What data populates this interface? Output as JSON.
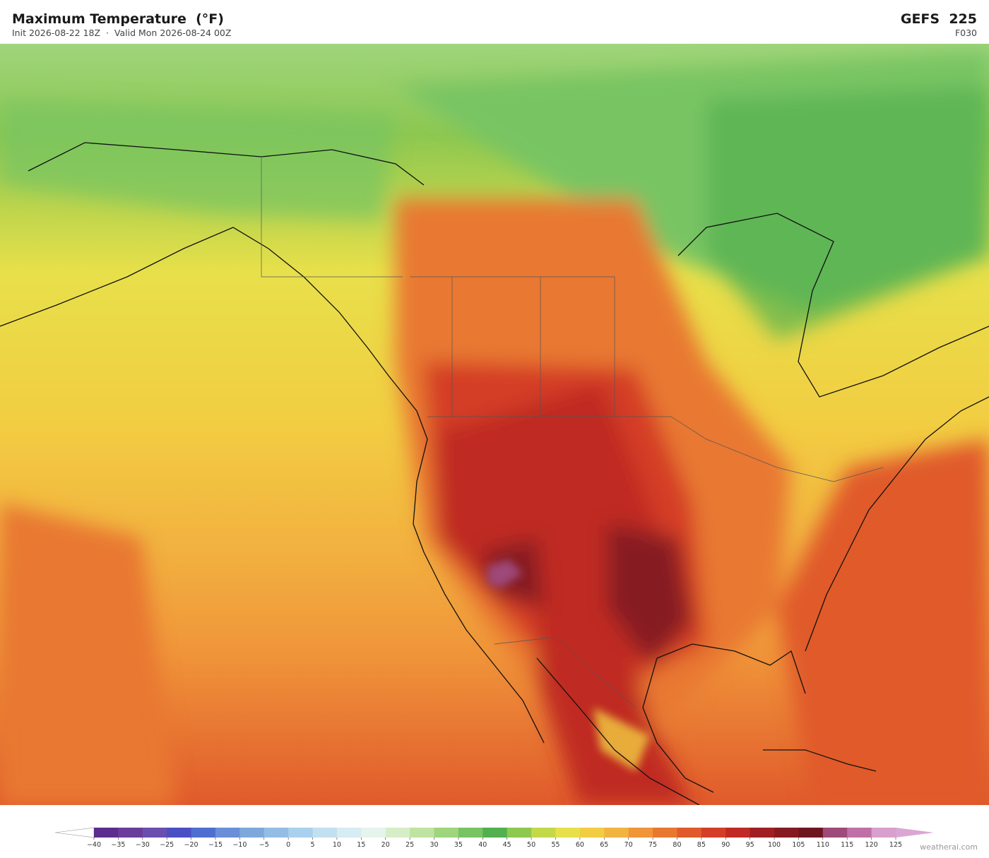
{
  "header": {
    "title": "Maximum Temperature  (°F)",
    "subtitle": "Init 2026-08-22 18Z  ·  Valid Mon 2026-08-24 00Z",
    "model": "GEFS  225",
    "forecast_hour": "F030"
  },
  "colorbar": {
    "labels": [
      "−40",
      "−35",
      "−30",
      "−25",
      "−20",
      "−15",
      "−10",
      "−5",
      "0",
      "5",
      "10",
      "15",
      "20",
      "25",
      "30",
      "35",
      "40",
      "45",
      "50",
      "55",
      "60",
      "65",
      "70",
      "75",
      "80",
      "85",
      "90",
      "95",
      "100",
      "105",
      "110",
      "115",
      "120",
      "125"
    ],
    "colors": [
      "#5b2d8e",
      "#6a3d9a",
      "#6a4fb0",
      "#4b4fc4",
      "#4f6fd0",
      "#6a8fd8",
      "#7ea8dc",
      "#93bde4",
      "#a9d0ec",
      "#c3e0f0",
      "#d7ecf3",
      "#e6f4ee",
      "#d6eec8",
      "#bfe3a0",
      "#9fd57c",
      "#78c463",
      "#52b050",
      "#8dc850",
      "#c4d94a",
      "#e8e04a",
      "#f2cd42",
      "#f2b440",
      "#f0953a",
      "#e87830",
      "#e05a2c",
      "#d43e28",
      "#bf2a24",
      "#a01f22",
      "#861a20",
      "#6e1620",
      "#9e4a7a",
      "#c070a8",
      "#d8a0cc"
    ],
    "under_color": "#ffffff",
    "over_color": "#dba6d4"
  },
  "credit": "weatherai.com"
}
